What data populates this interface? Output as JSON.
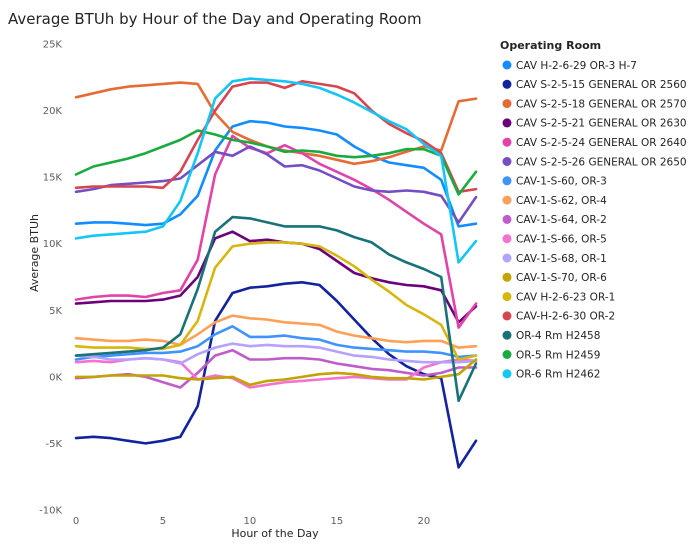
{
  "chart_data": {
    "type": "line",
    "title": "Average BTUh by Hour of the Day and Operating Room",
    "xlabel": "Hour of the Day",
    "ylabel": "Average BTUh",
    "xlim": [
      0,
      23
    ],
    "ylim": [
      -10000,
      25000
    ],
    "x_ticks": [
      0,
      5,
      10,
      15,
      20
    ],
    "y_ticks": [
      -10000,
      -5000,
      0,
      5000,
      10000,
      15000,
      20000,
      25000
    ],
    "y_tick_labels": [
      "-10K",
      "-5K",
      "0K",
      "5K",
      "10K",
      "15K",
      "20K",
      "25K"
    ],
    "grid": false,
    "legend_position": "right",
    "legend_title": "Operating Room",
    "x": [
      0,
      1,
      2,
      3,
      4,
      5,
      6,
      7,
      8,
      9,
      10,
      11,
      12,
      13,
      14,
      15,
      16,
      17,
      18,
      19,
      20,
      21,
      22,
      23
    ],
    "series": [
      {
        "name": "CAV H-2-6-29 OR-3 H-7",
        "color": "#118DFF",
        "values": [
          11500,
          11600,
          11600,
          11500,
          11400,
          11500,
          12200,
          13600,
          17000,
          18800,
          19200,
          19100,
          18800,
          18700,
          18500,
          18200,
          17300,
          16600,
          16100,
          15900,
          15700,
          14800,
          11300,
          11500
        ]
      },
      {
        "name": "CAV S-2-5-15 GENERAL OR 2560",
        "color": "#12239E",
        "values": [
          -4600,
          -4500,
          -4600,
          -4800,
          -5000,
          -4800,
          -4500,
          -2200,
          4200,
          6300,
          6700,
          6800,
          7000,
          7100,
          6900,
          5700,
          4300,
          2900,
          1700,
          800,
          200,
          -100,
          -6800,
          -4800
        ]
      },
      {
        "name": "CAV S-2-5-18 GENERAL OR 2570",
        "color": "#E66C37",
        "values": [
          21000,
          21300,
          21600,
          21800,
          21900,
          22000,
          22100,
          22000,
          19800,
          18400,
          17800,
          17300,
          17000,
          16800,
          16600,
          16300,
          16000,
          16200,
          16500,
          16900,
          17300,
          17000,
          20700,
          20900
        ]
      },
      {
        "name": "CAV S-2-5-21 GENERAL OR 2630",
        "color": "#6B007B",
        "values": [
          5500,
          5600,
          5700,
          5700,
          5700,
          5800,
          6100,
          7500,
          10400,
          10900,
          10200,
          10300,
          10100,
          10000,
          9600,
          8700,
          7800,
          7400,
          7100,
          6900,
          6800,
          6500,
          4100,
          5300
        ]
      },
      {
        "name": "CAV S-2-5-24 GENERAL OR 2640",
        "color": "#E044A7",
        "values": [
          5800,
          6000,
          6100,
          6100,
          6000,
          6300,
          6500,
          8800,
          15200,
          18100,
          17200,
          16800,
          17400,
          16800,
          16000,
          15400,
          14800,
          14100,
          13300,
          12400,
          11500,
          10700,
          3700,
          5500
        ]
      },
      {
        "name": "CAV S-2-5-26 GENERAL OR 2650",
        "color": "#744EC2",
        "values": [
          13900,
          14100,
          14400,
          14500,
          14600,
          14700,
          14900,
          15900,
          16900,
          16600,
          17300,
          16700,
          15800,
          15900,
          15500,
          14900,
          14300,
          14000,
          13900,
          14000,
          13900,
          13600,
          11600,
          13500
        ]
      },
      {
        "name": "CAV-1-S-60, OR-3",
        "color": "#4092FF",
        "values": [
          1300,
          1500,
          1600,
          1700,
          1800,
          1800,
          1900,
          2300,
          3200,
          3800,
          3000,
          3000,
          3100,
          2900,
          2800,
          2400,
          2200,
          2100,
          2000,
          1900,
          1900,
          1800,
          1500,
          1600
        ]
      },
      {
        "name": "CAV-1-S-62, OR-4",
        "color": "#FFA058",
        "values": [
          2900,
          2800,
          2700,
          2700,
          2800,
          2700,
          2400,
          3200,
          4100,
          4600,
          4400,
          4300,
          4100,
          4000,
          3900,
          3400,
          3100,
          2900,
          2700,
          2600,
          2700,
          2700,
          2200,
          2300
        ]
      },
      {
        "name": "CAV-1-S-64, OR-2",
        "color": "#BE5DC9",
        "values": [
          -100,
          0,
          100,
          200,
          0,
          -400,
          -800,
          300,
          1600,
          2000,
          1300,
          1300,
          1400,
          1400,
          1300,
          1000,
          800,
          600,
          500,
          300,
          100,
          300,
          700,
          700
        ]
      },
      {
        "name": "CAV-1-S-66, OR-5",
        "color": "#F472D0",
        "values": [
          1100,
          1200,
          1100,
          1300,
          1400,
          1300,
          1100,
          -200,
          100,
          -100,
          -800,
          -600,
          -400,
          -300,
          -200,
          -100,
          0,
          -100,
          -200,
          -200,
          700,
          1100,
          1300,
          1200
        ]
      },
      {
        "name": "CAV-1-S-68, OR-1",
        "color": "#B5A1FF",
        "values": [
          1600,
          1500,
          1300,
          1300,
          1400,
          1300,
          1000,
          1700,
          2200,
          2500,
          2300,
          2400,
          2300,
          2300,
          2200,
          1900,
          1600,
          1500,
          1300,
          1200,
          1100,
          1100,
          1100,
          1200
        ]
      },
      {
        "name": "CAV-1-S-70, OR-6",
        "color": "#C4A200",
        "values": [
          0,
          0,
          100,
          100,
          100,
          100,
          -100,
          -200,
          -100,
          0,
          -600,
          -300,
          -200,
          0,
          200,
          300,
          200,
          0,
          -100,
          -100,
          -200,
          0,
          200,
          1300
        ]
      },
      {
        "name": "CAV H-2-6-23 OR-1",
        "color": "#D6B60F",
        "values": [
          2300,
          2200,
          2200,
          2200,
          2100,
          2100,
          2400,
          4200,
          8200,
          9800,
          10000,
          10100,
          10100,
          10000,
          9800,
          9100,
          8300,
          7300,
          6400,
          5400,
          4700,
          3900,
          1300,
          1600
        ]
      },
      {
        "name": "CAV-H-2-6-30 OR-2",
        "color": "#D64550",
        "values": [
          14200,
          14300,
          14300,
          14300,
          14300,
          14200,
          15400,
          17800,
          20000,
          21800,
          22100,
          22100,
          21700,
          22200,
          22000,
          21800,
          21300,
          20000,
          19000,
          18300,
          17700,
          16800,
          13900,
          14100
        ]
      },
      {
        "name": "OR-4 Rm H2458",
        "color": "#197278",
        "values": [
          1600,
          1700,
          1800,
          1900,
          2000,
          2200,
          3200,
          6600,
          10900,
          12000,
          11900,
          11600,
          11300,
          11300,
          11300,
          11000,
          10500,
          10100,
          9200,
          8600,
          8100,
          7500,
          -1800,
          1000
        ]
      },
      {
        "name": "OR-5 Rm H2459",
        "color": "#1AAB40",
        "values": [
          15200,
          15800,
          16100,
          16400,
          16800,
          17300,
          17800,
          18500,
          18200,
          17800,
          17600,
          17300,
          16900,
          17000,
          16900,
          16600,
          16500,
          16600,
          16800,
          17100,
          17100,
          16600,
          13700,
          15400
        ]
      },
      {
        "name": "OR-6 Rm H2462",
        "color": "#15C6F4",
        "values": [
          10400,
          10600,
          10700,
          10800,
          10900,
          11300,
          13200,
          16800,
          20900,
          22200,
          22400,
          22300,
          22200,
          22000,
          21700,
          21200,
          20600,
          19900,
          19200,
          18600,
          17500,
          16600,
          8600,
          10200
        ]
      }
    ]
  }
}
